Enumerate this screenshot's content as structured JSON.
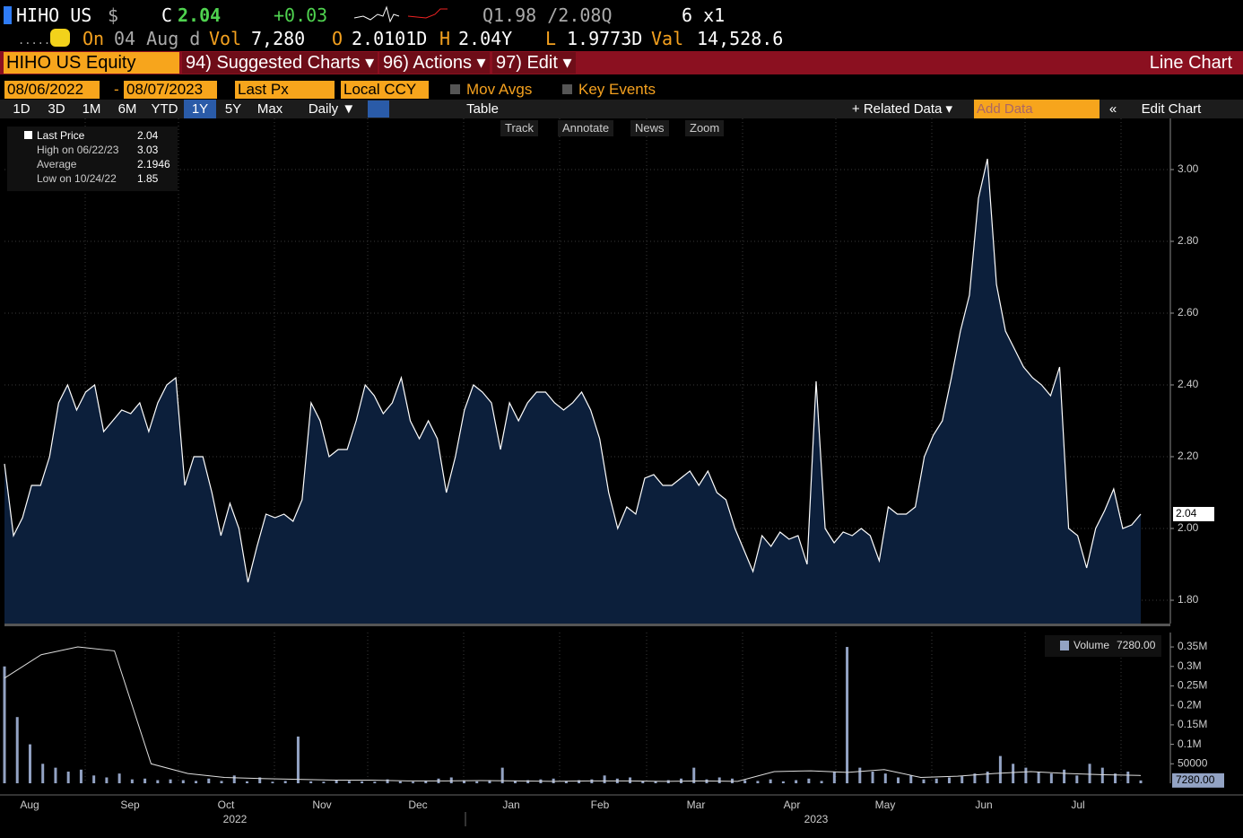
{
  "header": {
    "ticker": "HIHO US",
    "currency": "$",
    "close_label": "C",
    "close": "2.04",
    "change": "+0.03",
    "quote": "Q1.98 /2.08Q",
    "size": "6 x1",
    "on": "On",
    "date": "04 Aug d",
    "vol_label": "Vol",
    "vol": "7,280",
    "open_label": "O",
    "open": "2.0101D",
    "high_label": "H",
    "high": "2.04Y",
    "low_label": "L",
    "low": "1.9773D",
    "val_label": "Val",
    "val": "14,528.6"
  },
  "menu": {
    "security": "HIHO US Equity",
    "suggested": "94) Suggested Charts ▾",
    "actions": "96) Actions ▾",
    "edit": "97) Edit ▾",
    "chart_kind": "Line Chart"
  },
  "settings": {
    "start": "08/06/2022",
    "dash": "-",
    "end": "08/07/2023",
    "field": "Last Px",
    "ccy": "Local CCY",
    "mov_avgs": "Mov Avgs",
    "key_events": "Key Events"
  },
  "toolbar": {
    "periods": [
      "1D",
      "3D",
      "1M",
      "6M",
      "YTD",
      "1Y",
      "5Y",
      "Max"
    ],
    "freq": "Daily ▼",
    "table": "Table",
    "related": "+ Related Data ▾",
    "add_data": "Add Data",
    "collapse": "«",
    "edit_chart": "Edit Chart"
  },
  "tools": [
    "Track",
    "Annotate",
    "News",
    "Zoom"
  ],
  "legend": [
    [
      "Last Price",
      "2.04"
    ],
    [
      "High on 06/22/23",
      "3.03"
    ],
    [
      "Average",
      "2.1946"
    ],
    [
      "Low on 10/24/22",
      "1.85"
    ]
  ],
  "months": [
    "Aug",
    "Sep",
    "Oct",
    "Nov",
    "Dec",
    "Jan",
    "Feb",
    "Mar",
    "Apr",
    "May",
    "Jun",
    "Jul"
  ],
  "years": [
    "2022",
    "2023"
  ],
  "chart_data": [
    {
      "type": "area",
      "name": "Last Price",
      "color": "#ffffff",
      "fill": "#0c1f3b",
      "last_label": "2.04",
      "values": [
        2.18,
        1.98,
        2.03,
        2.12,
        2.12,
        2.2,
        2.35,
        2.4,
        2.33,
        2.38,
        2.4,
        2.27,
        2.3,
        2.33,
        2.32,
        2.35,
        2.27,
        2.35,
        2.4,
        2.42,
        2.12,
        2.2,
        2.2,
        2.1,
        1.98,
        2.07,
        2.0,
        1.85,
        1.95,
        2.04,
        2.03,
        2.04,
        2.02,
        2.08,
        2.35,
        2.3,
        2.2,
        2.22,
        2.22,
        2.3,
        2.4,
        2.37,
        2.32,
        2.35,
        2.42,
        2.3,
        2.25,
        2.3,
        2.25,
        2.1,
        2.2,
        2.33,
        2.4,
        2.38,
        2.35,
        2.22,
        2.35,
        2.3,
        2.35,
        2.38,
        2.38,
        2.35,
        2.33,
        2.35,
        2.38,
        2.33,
        2.25,
        2.1,
        2.0,
        2.06,
        2.04,
        2.14,
        2.15,
        2.12,
        2.12,
        2.14,
        2.16,
        2.12,
        2.16,
        2.1,
        2.08,
        2.0,
        1.94,
        1.88,
        1.98,
        1.95,
        1.99,
        1.97,
        1.98,
        1.9,
        2.41,
        2.0,
        1.96,
        1.99,
        1.98,
        2.0,
        1.98,
        1.91,
        2.06,
        2.04,
        2.04,
        2.06,
        2.2,
        2.26,
        2.3,
        2.42,
        2.55,
        2.65,
        2.92,
        3.03,
        2.68,
        2.55,
        2.5,
        2.45,
        2.42,
        2.4,
        2.37,
        2.45,
        2.0,
        1.98,
        1.89,
        2.0,
        2.05,
        2.11,
        2.0,
        2.01,
        2.04
      ],
      "ylim": [
        1.735,
        3.1425
      ],
      "yticks": [
        {
          "value": 1.8,
          "label": "1.80"
        },
        {
          "value": 2.0,
          "label": "2.00"
        },
        {
          "value": 2.2,
          "label": "2.20"
        },
        {
          "value": 2.4,
          "label": "2.40"
        },
        {
          "value": 2.6,
          "label": "2.60"
        },
        {
          "value": 2.8,
          "label": "2.80"
        },
        {
          "value": 3.0,
          "label": "3.00"
        }
      ],
      "grid": true
    },
    {
      "type": "bar",
      "name": "Volume",
      "color": "#93a3c4",
      "last_label": "7280.00",
      "legend_value": "7280.00",
      "values": [
        300000,
        170000,
        100000,
        50000,
        40000,
        30000,
        35000,
        20000,
        15000,
        25000,
        10000,
        12000,
        8000,
        10000,
        8000,
        6000,
        12000,
        6000,
        20000,
        5000,
        15000,
        4000,
        6000,
        120000,
        5000,
        4000,
        8000,
        6000,
        5000,
        4000,
        10000,
        5000,
        4000,
        6000,
        12000,
        15000,
        6000,
        5000,
        8000,
        40000,
        6000,
        8000,
        10000,
        12000,
        6000,
        8000,
        10000,
        20000,
        12000,
        15000,
        6000,
        5000,
        8000,
        12000,
        40000,
        10000,
        15000,
        12000,
        8000,
        6000,
        10000,
        5000,
        8000,
        12000,
        6000,
        30000,
        350000,
        40000,
        30000,
        25000,
        15000,
        20000,
        10000,
        12000,
        15000,
        18000,
        25000,
        30000,
        70000,
        50000,
        40000,
        30000,
        25000,
        35000,
        20000,
        50000,
        40000,
        25000,
        30000,
        7280
      ],
      "average": [
        270000,
        330000,
        350000,
        340000,
        50000,
        25000,
        15000,
        12000,
        10000,
        8000,
        8000,
        6000,
        6000,
        7000,
        6000,
        5000,
        6000,
        6000,
        5000,
        6000,
        5000,
        30000,
        32000,
        28000,
        35000,
        15000,
        18000,
        25000,
        30000,
        25000,
        22000,
        20000
      ],
      "ylim": [
        0,
        387000
      ],
      "yticks": [
        50000,
        {
          "value": 100000,
          "label": "0.1M"
        },
        {
          "value": 150000,
          "label": "0.15M"
        },
        {
          "value": 200000,
          "label": "0.2M"
        },
        {
          "value": 250000,
          "label": "0.25M"
        },
        {
          "value": 300000,
          "label": "0.3M"
        },
        {
          "value": 350000,
          "label": "0.35M"
        }
      ]
    }
  ]
}
